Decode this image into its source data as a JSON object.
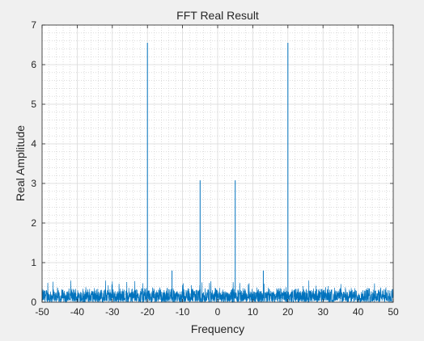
{
  "chart_data": {
    "type": "line",
    "title": "FFT Real Result",
    "xlabel": "Frequency",
    "ylabel": "Real Amplitude",
    "xlim": [
      -50,
      50
    ],
    "ylim": [
      0,
      7
    ],
    "xticks": [
      -50,
      -40,
      -30,
      -20,
      -10,
      0,
      10,
      20,
      30,
      40,
      50
    ],
    "yticks": [
      0,
      1,
      2,
      3,
      4,
      5,
      6,
      7
    ],
    "grid": true,
    "minor_grid": true,
    "line_color": "#0072BD",
    "noise_floor_max": 0.4,
    "peaks": [
      {
        "x": -20,
        "y": 6.55
      },
      {
        "x": -5,
        "y": 3.08
      },
      {
        "x": 5,
        "y": 3.08
      },
      {
        "x": 20,
        "y": 6.55
      },
      {
        "x": -13,
        "y": 0.8
      },
      {
        "x": 13,
        "y": 0.8
      }
    ]
  }
}
